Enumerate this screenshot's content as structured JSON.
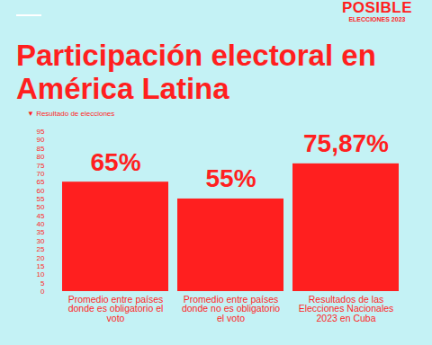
{
  "chart_data": {
    "type": "bar",
    "title": "Participación electoral en América Latina",
    "subtitle": "▼ Resultado de elecciones",
    "annotations": [
      "POSIBLE",
      "ELECCIONES 2023"
    ],
    "categories": [
      "Promedio entre países donde es obligatorio el voto",
      "Promedio entre países donde no es obligatorio el voto",
      "Resultados de las Elecciones Nacionales 2023 en Cuba"
    ],
    "values": [
      65,
      55,
      75.87
    ],
    "value_labels": [
      "65%",
      "55%",
      "75,87%"
    ],
    "color": "#ff1f1f",
    "ylim": [
      0,
      95
    ],
    "yticks": [
      0,
      5,
      10,
      15,
      20,
      25,
      30,
      35,
      40,
      45,
      50,
      55,
      60,
      65,
      70,
      75,
      80,
      85,
      90,
      95
    ],
    "grid": false,
    "data_labels": true
  }
}
